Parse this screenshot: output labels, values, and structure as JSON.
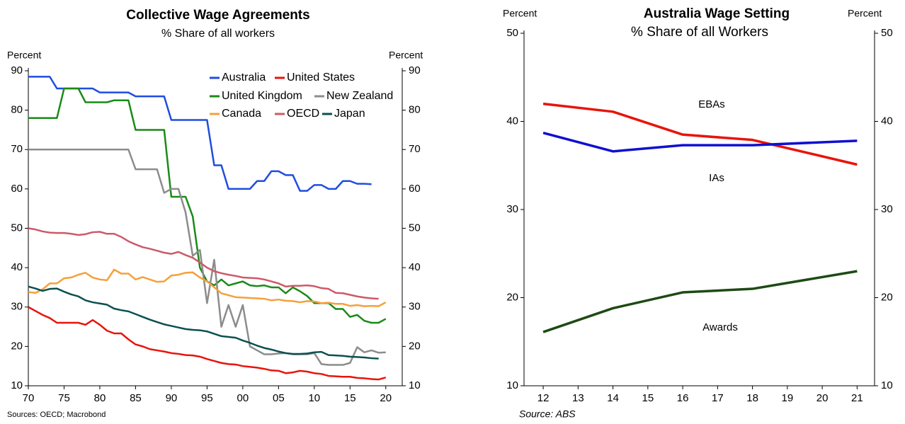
{
  "chart_data": [
    {
      "type": "line",
      "title": "Collective Wage Agreements",
      "subtitle": "% Share of all workers",
      "ylabel_left": "Percent",
      "ylabel_right": "Percent",
      "source": "Sources: OECD; Macrobond",
      "x": [
        1970,
        1971,
        1972,
        1973,
        1974,
        1975,
        1976,
        1977,
        1978,
        1979,
        1980,
        1981,
        1982,
        1983,
        1984,
        1985,
        1986,
        1987,
        1988,
        1989,
        1990,
        1991,
        1992,
        1993,
        1994,
        1995,
        1996,
        1997,
        1998,
        1999,
        2000,
        2001,
        2002,
        2003,
        2004,
        2005,
        2006,
        2007,
        2008,
        2009,
        2010,
        2011,
        2012,
        2013,
        2014,
        2015,
        2016,
        2017,
        2018,
        2019,
        2020
      ],
      "xlim": [
        1970,
        2022.3
      ],
      "xticks": [
        {
          "value": 1970,
          "label": "70"
        },
        {
          "value": 1975,
          "label": "75"
        },
        {
          "value": 1980,
          "label": "80"
        },
        {
          "value": 1985,
          "label": "85"
        },
        {
          "value": 1990,
          "label": "90"
        },
        {
          "value": 1995,
          "label": "95"
        },
        {
          "value": 2000,
          "label": "00"
        },
        {
          "value": 2005,
          "label": "05"
        },
        {
          "value": 2010,
          "label": "10"
        },
        {
          "value": 2015,
          "label": "15"
        },
        {
          "value": 2020,
          "label": "20"
        }
      ],
      "ylim": [
        10,
        90
      ],
      "yticks": [
        10,
        20,
        30,
        40,
        50,
        60,
        70,
        80,
        90
      ],
      "series": [
        {
          "name": "Australia",
          "color": "#1f4de0",
          "values": [
            88.5,
            88.5,
            88.5,
            88.5,
            85.5,
            85.5,
            85.5,
            85.5,
            85.5,
            85.5,
            84.5,
            84.5,
            84.5,
            84.5,
            84.5,
            83.5,
            83.5,
            83.5,
            83.5,
            83.5,
            77.5,
            77.5,
            77.5,
            77.5,
            77.5,
            77.5,
            66,
            66,
            60,
            60,
            60,
            60,
            62,
            62,
            64.5,
            64.5,
            63.5,
            63.5,
            59.5,
            59.5,
            61,
            61,
            60,
            60,
            62,
            62,
            61.3,
            61.3,
            61.2,
            null,
            null
          ]
        },
        {
          "name": "United States",
          "color": "#e8140c",
          "values": [
            30,
            29,
            28,
            27.2,
            26,
            26,
            26,
            26,
            25.5,
            26.7,
            25.5,
            24,
            23.3,
            23.3,
            21.8,
            20.5,
            20,
            19.3,
            19,
            18.7,
            18.3,
            18.1,
            17.8,
            17.7,
            17.4,
            16.8,
            16.3,
            15.8,
            15.5,
            15.4,
            15,
            14.8,
            14.6,
            14.3,
            13.9,
            13.8,
            13.2,
            13.4,
            13.8,
            13.6,
            13.2,
            13,
            12.5,
            12.4,
            12.3,
            12.3,
            12,
            11.9,
            11.7,
            11.6,
            12.1
          ]
        },
        {
          "name": "United Kingdom",
          "color": "#1a8a18",
          "values": [
            78,
            78,
            78,
            78,
            78,
            85.5,
            85.5,
            85.5,
            82,
            82,
            82,
            82,
            82.5,
            82.5,
            82.5,
            75,
            75,
            75,
            75,
            75,
            58,
            58,
            58,
            53,
            40,
            36.5,
            35.5,
            37,
            35.5,
            36,
            36.5,
            35.5,
            35.3,
            35.5,
            35,
            35,
            33.5,
            35,
            34,
            32.8,
            31,
            31,
            31,
            29.5,
            29.5,
            27.5,
            28,
            26.5,
            26,
            26,
            27
          ]
        },
        {
          "name": "New Zealand",
          "color": "#8c8c8c",
          "values": [
            70,
            70,
            70,
            70,
            70,
            70,
            70,
            70,
            70,
            70,
            70,
            70,
            70,
            70,
            70,
            65,
            65,
            65,
            65,
            59,
            60,
            60,
            54,
            43,
            44.5,
            31,
            42,
            25,
            30.5,
            25,
            30.5,
            20,
            19,
            18,
            18,
            18.2,
            18.3,
            18,
            18,
            18,
            18.3,
            15.5,
            15.3,
            15.3,
            15.3,
            15.8,
            19.8,
            18.5,
            19,
            18.4,
            18.5
          ]
        },
        {
          "name": "Canada",
          "color": "#f5a03c",
          "values": [
            33.8,
            33.6,
            34.5,
            36,
            36,
            37.3,
            37.5,
            38.2,
            38.7,
            37.5,
            37,
            36.8,
            39.5,
            38.5,
            38.5,
            37,
            37.6,
            37,
            36.4,
            36.5,
            38,
            38.2,
            38.7,
            38.8,
            37.5,
            36.5,
            35,
            33.5,
            33,
            32.5,
            32.4,
            32.3,
            32.2,
            32.1,
            31.7,
            31.9,
            31.6,
            31.5,
            31.2,
            31.5,
            31.4,
            31,
            31.1,
            30.8,
            30.8,
            30.3,
            30.5,
            30.2,
            30.3,
            30.2,
            31.2
          ]
        },
        {
          "name": "OECD",
          "color": "#cc5a6a",
          "values": [
            50,
            49.7,
            49.2,
            48.9,
            48.8,
            48.8,
            48.6,
            48.3,
            48.5,
            49,
            49.1,
            48.6,
            48.6,
            47.8,
            46.7,
            45.9,
            45.2,
            44.8,
            44.3,
            43.8,
            43.5,
            44,
            43.2,
            42.5,
            41.3,
            40,
            39.1,
            38.6,
            38.2,
            37.9,
            37.5,
            37.4,
            37.3,
            37,
            36.5,
            36,
            35.2,
            35.4,
            35.4,
            35.5,
            35.3,
            34.8,
            34.6,
            33.6,
            33.5,
            33.1,
            32.7,
            32.4,
            32.2,
            32.1,
            null
          ]
        },
        {
          "name": "Japan",
          "color": "#0c5050",
          "values": [
            35.2,
            34.7,
            34.1,
            34.6,
            34.7,
            33.9,
            33.2,
            32.7,
            31.7,
            31.2,
            30.9,
            30.6,
            29.6,
            29.2,
            28.9,
            28.2,
            27.5,
            26.8,
            26.2,
            25.6,
            25.2,
            24.8,
            24.4,
            24.2,
            24.1,
            23.8,
            23.2,
            22.6,
            22.4,
            22.2,
            21.5,
            20.9,
            20.2,
            19.6,
            19.2,
            18.7,
            18.3,
            18.1,
            18.1,
            18.2,
            18.5,
            18.6,
            17.8,
            17.7,
            17.6,
            17.4,
            17.3,
            17.2,
            17,
            16.9,
            null
          ]
        }
      ]
    },
    {
      "type": "line",
      "title": "Australia Wage Setting",
      "subtitle": "% Share of all Workers",
      "ylabel_left": "Percent",
      "ylabel_right": "Percent",
      "source": "Source: ABS",
      "x": [
        12,
        14,
        16,
        18,
        21
      ],
      "xlim": [
        11.45,
        21.5
      ],
      "xticks": [
        12,
        13,
        14,
        15,
        16,
        17,
        18,
        19,
        20,
        21
      ],
      "ylim": [
        10,
        50
      ],
      "yticks": [
        10,
        20,
        30,
        40,
        50
      ],
      "series": [
        {
          "name": "EBAs",
          "color": "#e8140c",
          "values": [
            42,
            41.1,
            38.5,
            37.9,
            35.1
          ]
        },
        {
          "name": "IAs",
          "color": "#1010d0",
          "values": [
            38.7,
            36.6,
            37.3,
            37.3,
            37.8
          ]
        },
        {
          "name": "Awards",
          "color": "#1e4a14",
          "values": [
            16.1,
            18.8,
            20.6,
            21,
            23
          ]
        }
      ]
    }
  ]
}
